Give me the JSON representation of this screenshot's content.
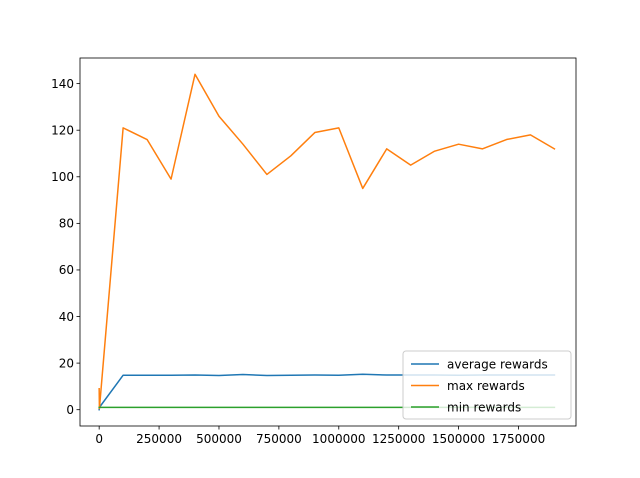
{
  "chart_data": {
    "type": "line",
    "title": "",
    "xlabel": "",
    "ylabel": "",
    "xlim": [
      -80000,
      1990000
    ],
    "ylim": [
      -7,
      151
    ],
    "grid": false,
    "legend_position": "lower-right",
    "x_ticks": [
      0,
      250000,
      500000,
      750000,
      1000000,
      1250000,
      1500000,
      1750000
    ],
    "x_tick_labels": [
      "0",
      "250000",
      "500000",
      "750000",
      "1000000",
      "1250000",
      "1500000",
      "1750000"
    ],
    "y_ticks": [
      0,
      20,
      40,
      60,
      80,
      100,
      120,
      140
    ],
    "y_tick_labels": [
      "0",
      "20",
      "40",
      "60",
      "80",
      "100",
      "120",
      "140"
    ],
    "x": [
      0,
      1000,
      100000,
      200000,
      300000,
      400000,
      500000,
      600000,
      700000,
      800000,
      900000,
      1000000,
      1100000,
      1200000,
      1300000,
      1400000,
      1500000,
      1600000,
      1700000,
      1800000,
      1900000
    ],
    "series": [
      {
        "name": "average rewards",
        "color": "#1f77b4",
        "values": [
          0,
          1,
          14.8,
          14.8,
          14.8,
          14.9,
          14.7,
          15.1,
          14.7,
          14.8,
          14.9,
          14.8,
          15.2,
          14.9,
          14.9,
          14.9,
          14.8,
          14.9,
          14.9,
          14.9,
          14.9
        ]
      },
      {
        "name": "max rewards",
        "color": "#ff7f0e",
        "values": [
          9,
          0.5,
          121,
          116,
          99,
          144,
          126,
          114,
          101,
          109,
          119,
          121,
          95,
          112,
          105,
          111,
          114,
          112,
          116,
          118,
          112
        ]
      },
      {
        "name": "min rewards",
        "color": "#2ca02c",
        "values": [
          1,
          1,
          1,
          1,
          1,
          1,
          1,
          1,
          1,
          1,
          1,
          1,
          1,
          1,
          1,
          1,
          1,
          1,
          1,
          1,
          1
        ]
      }
    ]
  }
}
